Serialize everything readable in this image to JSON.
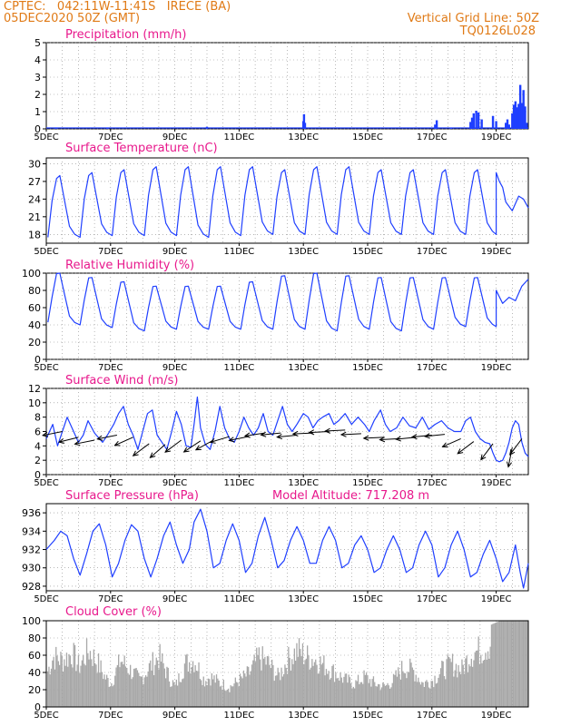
{
  "header": {
    "line1": "CPTEC:   042:11W-11:41S   IRECE (BA)",
    "line2": "05DEC2020 50Z (GMT)",
    "right1": "Vertical Grid Line: 50Z",
    "right2": "TQ0126L028"
  },
  "colors": {
    "header": "#e07a16",
    "title": "#e8188c",
    "line": "#1f3fff",
    "bar": "#a8a8a8",
    "grid": "#8a8a8a"
  },
  "x_axis": {
    "ticks": [
      "5DEC",
      "7DEC",
      "9DEC",
      "11DEC",
      "13DEC",
      "15DEC",
      "17DEC",
      "19DEC"
    ]
  },
  "extra_label": "Model Altitude: 717.208 m",
  "chart_data": [
    {
      "type": "bar",
      "title": "Precipitation (mm/h)",
      "ylim": [
        0,
        5
      ],
      "yticks": [
        0,
        1,
        2,
        3,
        4,
        5
      ],
      "spikes": [
        [
          5.3,
          0.08
        ],
        [
          6.9,
          0.05
        ],
        [
          10.0,
          0.12
        ],
        [
          13.0,
          0.45
        ],
        [
          13.02,
          0.85
        ],
        [
          13.05,
          0.35
        ],
        [
          17.1,
          0.25
        ],
        [
          17.15,
          0.5
        ],
        [
          17.6,
          0.05
        ],
        [
          18.2,
          0.4
        ],
        [
          18.25,
          0.65
        ],
        [
          18.3,
          0.9
        ],
        [
          18.38,
          1.05
        ],
        [
          18.45,
          0.95
        ],
        [
          18.55,
          0.55
        ],
        [
          18.9,
          0.75
        ],
        [
          19.0,
          0.45
        ],
        [
          19.3,
          0.35
        ],
        [
          19.35,
          0.55
        ],
        [
          19.4,
          0.25
        ],
        [
          19.5,
          0.9
        ],
        [
          19.55,
          1.4
        ],
        [
          19.6,
          1.6
        ],
        [
          19.65,
          1.25
        ],
        [
          19.7,
          1.45
        ],
        [
          19.75,
          2.55
        ],
        [
          19.8,
          1.5
        ],
        [
          19.85,
          2.25
        ],
        [
          19.9,
          1.3
        ],
        [
          19.95,
          0.35
        ]
      ]
    },
    {
      "type": "line",
      "title": "Surface Temperature (nC)",
      "ylim": [
        16.5,
        31
      ],
      "yticks": [
        18,
        21,
        24,
        27,
        30
      ],
      "daily_max": [
        28,
        28.5,
        29,
        29.5,
        29.5,
        29.5,
        29.5,
        29,
        29.5,
        29.5,
        29,
        29,
        29,
        29,
        28.5
      ],
      "daily_min": [
        17.5,
        17.5,
        17.8,
        17.8,
        17.8,
        17.5,
        17.8,
        18,
        18,
        18,
        18,
        18,
        18,
        18,
        18
      ],
      "last_day": [
        [
          19.0,
          28.5
        ],
        [
          19.1,
          27
        ],
        [
          19.2,
          26
        ],
        [
          19.3,
          23.5
        ],
        [
          19.5,
          22
        ],
        [
          19.7,
          24.5
        ],
        [
          19.85,
          24
        ],
        [
          20.0,
          22.5
        ]
      ]
    },
    {
      "type": "line",
      "title": "Relative Humidity (%)",
      "ylim": [
        0,
        100
      ],
      "yticks": [
        0,
        20,
        40,
        60,
        80,
        100
      ],
      "daily_max": [
        100,
        95,
        90,
        85,
        85,
        85,
        90,
        97,
        100,
        97,
        95,
        95,
        95,
        95,
        95
      ],
      "daily_min": [
        43,
        40,
        37,
        33,
        35,
        35,
        35,
        35,
        35,
        33,
        35,
        33,
        35,
        38,
        38
      ],
      "last_day": [
        [
          19.0,
          80
        ],
        [
          19.2,
          65
        ],
        [
          19.4,
          72
        ],
        [
          19.6,
          68
        ],
        [
          19.8,
          85
        ],
        [
          20.0,
          93
        ]
      ]
    },
    {
      "type": "line",
      "title": "Surface Wind (m/s)",
      "ylim": [
        0,
        12
      ],
      "yticks": [
        0,
        2,
        4,
        6,
        8,
        10,
        12
      ],
      "speed": [
        [
          5.0,
          5
        ],
        [
          5.2,
          7
        ],
        [
          5.35,
          4
        ],
        [
          5.5,
          6
        ],
        [
          5.65,
          8
        ],
        [
          5.8,
          6.5
        ],
        [
          6.0,
          4.5
        ],
        [
          6.15,
          5.5
        ],
        [
          6.3,
          7.5
        ],
        [
          6.5,
          5.8
        ],
        [
          6.75,
          4.5
        ],
        [
          6.9,
          5.5
        ],
        [
          7.1,
          7
        ],
        [
          7.25,
          8.5
        ],
        [
          7.4,
          9.5
        ],
        [
          7.55,
          7
        ],
        [
          7.7,
          5.5
        ],
        [
          7.85,
          3.5
        ],
        [
          8.0,
          6
        ],
        [
          8.15,
          8.5
        ],
        [
          8.3,
          9
        ],
        [
          8.45,
          5.5
        ],
        [
          8.6,
          4.5
        ],
        [
          8.75,
          3.5
        ],
        [
          8.9,
          6
        ],
        [
          9.05,
          8.8
        ],
        [
          9.2,
          7
        ],
        [
          9.35,
          4
        ],
        [
          9.5,
          3.8
        ],
        [
          9.6,
          7
        ],
        [
          9.7,
          10.8
        ],
        [
          9.8,
          6.5
        ],
        [
          9.95,
          4.2
        ],
        [
          10.1,
          3.5
        ],
        [
          10.25,
          6
        ],
        [
          10.4,
          9.5
        ],
        [
          10.55,
          6.5
        ],
        [
          10.7,
          5
        ],
        [
          10.85,
          4.5
        ],
        [
          11.0,
          6
        ],
        [
          11.15,
          8
        ],
        [
          11.3,
          6.5
        ],
        [
          11.45,
          5.5
        ],
        [
          11.6,
          6.5
        ],
        [
          11.75,
          8.5
        ],
        [
          11.9,
          6
        ],
        [
          12.05,
          5.5
        ],
        [
          12.2,
          7.5
        ],
        [
          12.35,
          9.5
        ],
        [
          12.5,
          7
        ],
        [
          12.65,
          6
        ],
        [
          12.8,
          7
        ],
        [
          13.0,
          8.5
        ],
        [
          13.15,
          8
        ],
        [
          13.3,
          6.5
        ],
        [
          13.45,
          7.5
        ],
        [
          13.6,
          8
        ],
        [
          13.8,
          8.5
        ],
        [
          13.95,
          7
        ],
        [
          14.1,
          7.5
        ],
        [
          14.3,
          8.5
        ],
        [
          14.5,
          7
        ],
        [
          14.7,
          8
        ],
        [
          14.9,
          7
        ],
        [
          15.05,
          6
        ],
        [
          15.2,
          7.5
        ],
        [
          15.4,
          9
        ],
        [
          15.55,
          7
        ],
        [
          15.7,
          6
        ],
        [
          15.9,
          6.5
        ],
        [
          16.1,
          8
        ],
        [
          16.3,
          6.8
        ],
        [
          16.5,
          6.5
        ],
        [
          16.7,
          8
        ],
        [
          16.9,
          6.3
        ],
        [
          17.1,
          7
        ],
        [
          17.3,
          7.5
        ],
        [
          17.5,
          6.5
        ],
        [
          17.7,
          6
        ],
        [
          17.9,
          6
        ],
        [
          18.05,
          7.5
        ],
        [
          18.2,
          8
        ],
        [
          18.35,
          6
        ],
        [
          18.5,
          5
        ],
        [
          18.65,
          4.5
        ],
        [
          18.8,
          4.3
        ],
        [
          18.9,
          3
        ],
        [
          19.0,
          2
        ],
        [
          19.1,
          1.8
        ],
        [
          19.2,
          2
        ],
        [
          19.3,
          3
        ],
        [
          19.4,
          4.5
        ],
        [
          19.5,
          6.5
        ],
        [
          19.6,
          7.5
        ],
        [
          19.7,
          7
        ],
        [
          19.8,
          4.5
        ],
        [
          19.9,
          3
        ],
        [
          20.0,
          2.5
        ]
      ],
      "vectors": [
        [
          5.5,
          6,
          1.0,
          0.2
        ],
        [
          6.0,
          5.2,
          1.0,
          0.25
        ],
        [
          6.5,
          4.8,
          1.0,
          0.2
        ],
        [
          7.2,
          5.5,
          1.0,
          0.2
        ],
        [
          7.7,
          5.2,
          0.9,
          0.4
        ],
        [
          8.2,
          4.3,
          0.8,
          0.6
        ],
        [
          8.7,
          4.2,
          0.8,
          0.7
        ],
        [
          9.2,
          4.8,
          0.8,
          0.6
        ],
        [
          9.8,
          4.7,
          0.9,
          0.6
        ],
        [
          10.2,
          4.8,
          0.9,
          0.5
        ],
        [
          10.7,
          5.3,
          1.0,
          0.3
        ],
        [
          11.3,
          5.3,
          1.0,
          0.2
        ],
        [
          11.8,
          5.8,
          1.0,
          0.15
        ],
        [
          12.3,
          5.8,
          1.0,
          0.1
        ],
        [
          12.8,
          5.5,
          1.0,
          0.1
        ],
        [
          13.3,
          5.8,
          1.0,
          0.05
        ],
        [
          13.8,
          6.0,
          1.0,
          0.05
        ],
        [
          14.3,
          6.2,
          1.0,
          0.05
        ],
        [
          14.8,
          5.7,
          1.0,
          0.05
        ],
        [
          15.5,
          5.2,
          1.0,
          0.05
        ],
        [
          16.0,
          5.0,
          1.0,
          0.05
        ],
        [
          16.5,
          5.2,
          1.0,
          0.1
        ],
        [
          17.0,
          5.5,
          1.0,
          0.1
        ],
        [
          17.4,
          5.6,
          1.0,
          0.1
        ],
        [
          17.9,
          5.0,
          0.9,
          0.4
        ],
        [
          18.3,
          4.6,
          0.8,
          0.6
        ],
        [
          18.9,
          4.3,
          0.6,
          0.8
        ],
        [
          19.5,
          3.8,
          0.2,
          1.0
        ],
        [
          19.8,
          5.0,
          0.6,
          0.8
        ]
      ]
    },
    {
      "type": "line",
      "title": "Surface Pressure (hPa)",
      "ylim": [
        927.5,
        937
      ],
      "yticks": [
        928,
        930,
        932,
        934,
        936
      ],
      "series": [
        [
          5.0,
          932
        ],
        [
          5.25,
          933
        ],
        [
          5.45,
          934
        ],
        [
          5.65,
          933.5
        ],
        [
          5.85,
          931
        ],
        [
          6.05,
          929.2
        ],
        [
          6.25,
          931.5
        ],
        [
          6.45,
          934
        ],
        [
          6.65,
          934.8
        ],
        [
          6.85,
          932.5
        ],
        [
          7.05,
          929
        ],
        [
          7.25,
          930.5
        ],
        [
          7.45,
          933
        ],
        [
          7.65,
          934.7
        ],
        [
          7.85,
          934
        ],
        [
          8.05,
          931
        ],
        [
          8.25,
          929
        ],
        [
          8.45,
          931
        ],
        [
          8.65,
          933.5
        ],
        [
          8.85,
          935
        ],
        [
          9.05,
          932.5
        ],
        [
          9.25,
          930.5
        ],
        [
          9.45,
          932
        ],
        [
          9.6,
          935
        ],
        [
          9.8,
          936.4
        ],
        [
          10.0,
          934
        ],
        [
          10.2,
          930
        ],
        [
          10.4,
          930.5
        ],
        [
          10.6,
          933
        ],
        [
          10.8,
          934.8
        ],
        [
          11.0,
          933
        ],
        [
          11.2,
          929.5
        ],
        [
          11.4,
          930.5
        ],
        [
          11.6,
          933.5
        ],
        [
          11.8,
          935.5
        ],
        [
          12.0,
          933
        ],
        [
          12.2,
          930
        ],
        [
          12.4,
          930.8
        ],
        [
          12.6,
          933
        ],
        [
          12.8,
          934.5
        ],
        [
          13.0,
          933
        ],
        [
          13.2,
          930.5
        ],
        [
          13.4,
          930.5
        ],
        [
          13.6,
          933
        ],
        [
          13.8,
          934.5
        ],
        [
          14.0,
          933
        ],
        [
          14.2,
          930
        ],
        [
          14.4,
          930.5
        ],
        [
          14.6,
          932.5
        ],
        [
          14.8,
          933.5
        ],
        [
          15.0,
          932
        ],
        [
          15.2,
          929.5
        ],
        [
          15.4,
          930
        ],
        [
          15.6,
          932
        ],
        [
          15.8,
          933.5
        ],
        [
          16.0,
          932
        ],
        [
          16.2,
          929.5
        ],
        [
          16.4,
          930
        ],
        [
          16.6,
          932.5
        ],
        [
          16.8,
          934
        ],
        [
          17.0,
          932.5
        ],
        [
          17.2,
          929
        ],
        [
          17.4,
          930
        ],
        [
          17.6,
          932.5
        ],
        [
          17.8,
          934
        ],
        [
          18.0,
          932
        ],
        [
          18.2,
          929
        ],
        [
          18.4,
          929.5
        ],
        [
          18.6,
          931.5
        ],
        [
          18.8,
          933
        ],
        [
          19.0,
          931
        ],
        [
          19.2,
          928.5
        ],
        [
          19.4,
          929.5
        ],
        [
          19.6,
          932.5
        ],
        [
          19.75,
          929.5
        ],
        [
          19.85,
          927.8
        ],
        [
          20.0,
          930.5
        ]
      ]
    },
    {
      "type": "bar",
      "title": "Cloud Cover (%)",
      "ylim": [
        0,
        100
      ],
      "yticks": [
        0,
        20,
        40,
        60,
        80,
        100
      ],
      "envelope": [
        [
          5.0,
          50
        ],
        [
          5.2,
          75
        ],
        [
          5.5,
          70
        ],
        [
          5.8,
          80
        ],
        [
          6.0,
          60
        ],
        [
          6.3,
          85
        ],
        [
          6.6,
          65
        ],
        [
          6.8,
          45
        ],
        [
          7.0,
          35
        ],
        [
          7.3,
          70
        ],
        [
          7.6,
          55
        ],
        [
          7.9,
          40
        ],
        [
          8.2,
          60
        ],
        [
          8.5,
          75
        ],
        [
          8.8,
          45
        ],
        [
          9.0,
          30
        ],
        [
          9.3,
          65
        ],
        [
          9.6,
          70
        ],
        [
          9.9,
          40
        ],
        [
          10.1,
          45
        ],
        [
          10.4,
          35
        ],
        [
          10.7,
          30
        ],
        [
          11.0,
          40
        ],
        [
          11.3,
          50
        ],
        [
          11.6,
          75
        ],
        [
          11.9,
          65
        ],
        [
          12.2,
          45
        ],
        [
          12.5,
          70
        ],
        [
          12.8,
          85
        ],
        [
          13.1,
          75
        ],
        [
          13.4,
          70
        ],
        [
          13.7,
          60
        ],
        [
          14.0,
          50
        ],
        [
          14.3,
          40
        ],
        [
          14.6,
          35
        ],
        [
          14.9,
          45
        ],
        [
          15.2,
          35
        ],
        [
          15.5,
          30
        ],
        [
          15.8,
          40
        ],
        [
          16.1,
          60
        ],
        [
          16.4,
          55
        ],
        [
          16.7,
          35
        ],
        [
          17.0,
          40
        ],
        [
          17.3,
          55
        ],
        [
          17.6,
          65
        ],
        [
          17.9,
          55
        ],
        [
          18.2,
          80
        ],
        [
          18.5,
          85
        ],
        [
          18.8,
          95
        ],
        [
          19.1,
          100
        ],
        [
          19.4,
          100
        ],
        [
          19.7,
          100
        ],
        [
          20.0,
          100
        ]
      ]
    }
  ]
}
